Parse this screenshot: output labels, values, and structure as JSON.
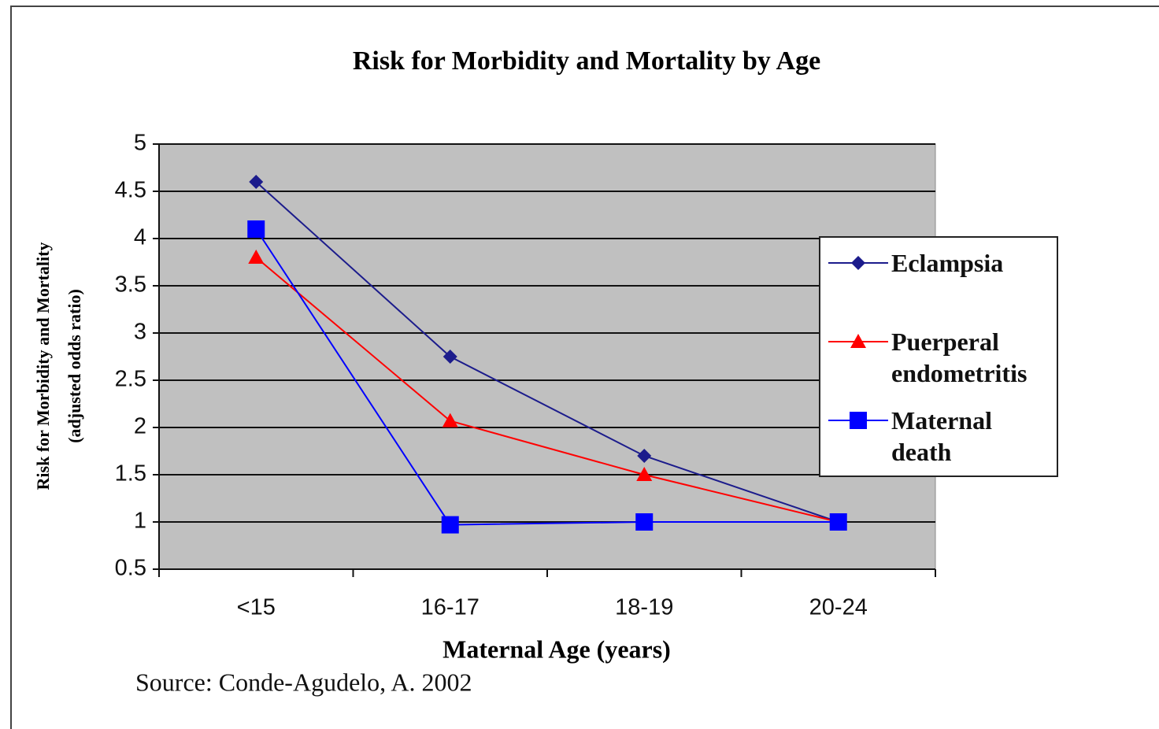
{
  "chart_data": {
    "type": "line",
    "title": "Risk for Morbidity and Mortality by Age",
    "xlabel": "Maternal Age (years)",
    "ylabel": [
      "Risk for Morbidity and Mortality",
      "(adjusted odds ratio)"
    ],
    "source": "Source: Conde-Agudelo, A. 2002",
    "categories": [
      "<15",
      "16-17",
      "18-19",
      "20-24"
    ],
    "series": [
      {
        "name": "Eclampsia",
        "color": "#1c1c8c",
        "marker": "diamond",
        "values": [
          4.6,
          2.75,
          1.7,
          1.0
        ]
      },
      {
        "name": "Puerperal endometritis",
        "color": "#ff0000",
        "marker": "triangle",
        "values": [
          3.8,
          2.07,
          1.5,
          1.0
        ]
      },
      {
        "name": "Maternal death",
        "color": "#0000ff",
        "marker": "square",
        "values": [
          4.1,
          0.97,
          1.0,
          1.0
        ]
      }
    ],
    "ylim": [
      0.5,
      5
    ],
    "yticks": [
      0.5,
      1,
      1.5,
      2,
      2.5,
      3,
      3.5,
      4,
      4.5,
      5
    ],
    "grid": true,
    "legend": "right"
  }
}
